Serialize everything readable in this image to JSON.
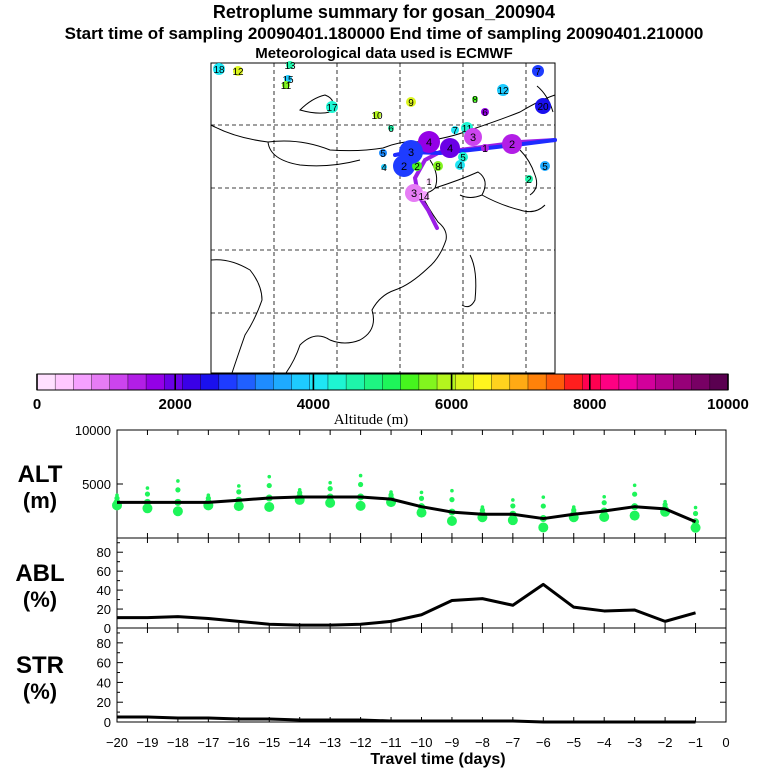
{
  "header": {
    "title": "Retroplume summary for gosan_200904",
    "sampling_line": "Start time of sampling 20090401.180000     End time of sampling 20090401.210000",
    "met_line": "Meteorological data used is ECMWF"
  },
  "colorbar": {
    "xlabel": "Altitude (m)",
    "tick_labels": [
      "0",
      "2000",
      "4000",
      "6000",
      "8000",
      "10000"
    ],
    "range": [
      0,
      10000
    ],
    "colors": [
      "#ffe0ff",
      "#ffc8ff",
      "#f5a0ff",
      "#e67cf5",
      "#cc44ee",
      "#b21ee6",
      "#9400e6",
      "#6a00e6",
      "#3a00e6",
      "#1a10ee",
      "#1e3cff",
      "#2060ff",
      "#1e8cff",
      "#1eaaff",
      "#1ecbff",
      "#1ee6f5",
      "#1ef5d2",
      "#1ef5aa",
      "#1ef582",
      "#1ef55a",
      "#46f51e",
      "#82f51e",
      "#b4f51e",
      "#dcf51e",
      "#fff51e",
      "#ffd21e",
      "#ffaa14",
      "#ff820a",
      "#ff5a0a",
      "#ff1e1e",
      "#ff0050",
      "#ff0082",
      "#f000a0",
      "#d2009b",
      "#b4008c",
      "#960078",
      "#780064",
      "#5a0050"
    ]
  },
  "map": {
    "trajectory_colors": [
      "#9b1ee6",
      "#1e2cff"
    ],
    "cluster_labels": [
      "18",
      "12",
      "13",
      "15",
      "11",
      "17",
      "10",
      "9",
      "8",
      "12",
      "6",
      "6",
      "7",
      "7",
      "11",
      "4",
      "3",
      "4",
      "5",
      "2",
      "4",
      "2",
      "2",
      "8",
      "5",
      "4",
      "1",
      "3",
      "20",
      "5",
      "2",
      "3",
      "14",
      "1"
    ]
  },
  "chart_data": [
    {
      "name": "ALT",
      "type": "line",
      "ylabel": "ALT",
      "yunit": "(m)",
      "x": [
        -20,
        -19,
        -18,
        -17,
        -16,
        -15,
        -14,
        -13,
        -12,
        -11,
        -10,
        -9,
        -8,
        -7,
        -6,
        -5,
        -4,
        -3,
        -2,
        -1
      ],
      "values": [
        3300,
        3300,
        3300,
        3300,
        3500,
        3700,
        3800,
        3800,
        3800,
        3600,
        2900,
        2400,
        2200,
        2200,
        1800,
        2200,
        2500,
        2900,
        2700,
        1500
      ],
      "ylim": [
        0,
        10000
      ],
      "yticks": [
        "5000",
        "10000"
      ],
      "scatter_color": "#1ef55a"
    },
    {
      "name": "ABL",
      "type": "line",
      "ylabel": "ABL",
      "yunit": "(%)",
      "x": [
        -20,
        -19,
        -18,
        -17,
        -16,
        -15,
        -14,
        -13,
        -12,
        -11,
        -10,
        -9,
        -8,
        -7,
        -6,
        -5,
        -4,
        -3,
        -2,
        -1
      ],
      "values": [
        11,
        11,
        12,
        10,
        7,
        4,
        3,
        3,
        4,
        7,
        14,
        29,
        31,
        24,
        46,
        22,
        18,
        19,
        7,
        16
      ],
      "ylim": [
        0,
        95
      ],
      "yticks": [
        "0",
        "20",
        "40",
        "60",
        "80"
      ]
    },
    {
      "name": "STR",
      "type": "line",
      "ylabel": "STR",
      "yunit": "(%)",
      "x": [
        -20,
        -19,
        -18,
        -17,
        -16,
        -15,
        -14,
        -13,
        -12,
        -11,
        -10,
        -9,
        -8,
        -7,
        -6,
        -5,
        -4,
        -3,
        -2,
        -1
      ],
      "values": [
        5,
        5,
        4,
        4,
        3,
        3,
        2,
        2,
        2,
        1,
        1,
        1,
        1,
        1,
        0,
        0,
        0,
        0,
        0,
        0
      ],
      "ylim": [
        0,
        95
      ],
      "yticks": [
        "0",
        "20",
        "40",
        "60",
        "80"
      ]
    }
  ],
  "xaxis": {
    "label": "Travel time (days)",
    "tick_labels": [
      "−20",
      "−19",
      "−18",
      "−17",
      "−16",
      "−15",
      "−14",
      "−13",
      "−12",
      "−11",
      "−10",
      "−9",
      "−8",
      "−7",
      "−6",
      "−5",
      "−4",
      "−3",
      "−2",
      "−1",
      "0"
    ]
  }
}
